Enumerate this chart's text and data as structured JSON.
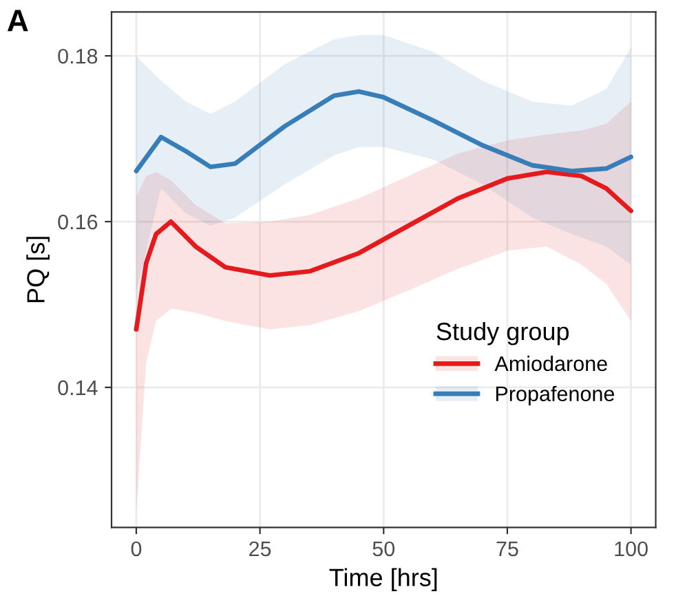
{
  "chart_data": {
    "type": "line",
    "xlabel": "Time [hrs]",
    "ylabel": "PQ [s]",
    "legend_title": "Study group",
    "annotations": [
      "A"
    ],
    "xlim": [
      -5,
      105
    ],
    "ylim": [
      0.1231,
      0.1853
    ],
    "xticks": [
      0,
      25,
      50,
      75,
      100
    ],
    "yticks": [
      0.14,
      0.16,
      0.18
    ],
    "grid": true,
    "legend": "bottom right",
    "line_style": "solid",
    "marker": "none",
    "series": [
      {
        "name": "Amiodarone",
        "color": "#e41a1c",
        "x": [
          0,
          2,
          4,
          7,
          12,
          18,
          27,
          35,
          45,
          55,
          65,
          75,
          83,
          90,
          95,
          100
        ],
        "values": [
          0.147,
          0.155,
          0.1585,
          0.16,
          0.157,
          0.1545,
          0.1535,
          0.154,
          0.1562,
          0.1595,
          0.1628,
          0.1652,
          0.166,
          0.1655,
          0.164,
          0.1613
        ],
        "lower": [
          0.125,
          0.143,
          0.148,
          0.1495,
          0.149,
          0.148,
          0.147,
          0.1475,
          0.1492,
          0.1517,
          0.1543,
          0.1565,
          0.157,
          0.1548,
          0.1525,
          0.148
        ],
        "upper": [
          0.163,
          0.1655,
          0.166,
          0.165,
          0.162,
          0.1598,
          0.16,
          0.1608,
          0.1628,
          0.1655,
          0.1682,
          0.1698,
          0.1705,
          0.171,
          0.1718,
          0.1745
        ]
      },
      {
        "name": "Propafenone",
        "color": "#377eb8",
        "x": [
          0,
          5,
          10,
          15,
          20,
          30,
          40,
          45,
          50,
          60,
          70,
          80,
          88,
          95,
          100
        ],
        "values": [
          0.1661,
          0.1702,
          0.1685,
          0.1666,
          0.167,
          0.1715,
          0.1752,
          0.1757,
          0.175,
          0.1722,
          0.1692,
          0.1668,
          0.1661,
          0.1664,
          0.1678
        ],
        "lower": [
          0.1515,
          0.164,
          0.161,
          0.1595,
          0.1605,
          0.1645,
          0.168,
          0.169,
          0.169,
          0.1675,
          0.1645,
          0.1605,
          0.1585,
          0.157,
          0.1548
        ],
        "upper": [
          0.18,
          0.177,
          0.1745,
          0.173,
          0.1745,
          0.179,
          0.182,
          0.1825,
          0.1825,
          0.1805,
          0.177,
          0.1745,
          0.174,
          0.176,
          0.181
        ]
      }
    ]
  }
}
